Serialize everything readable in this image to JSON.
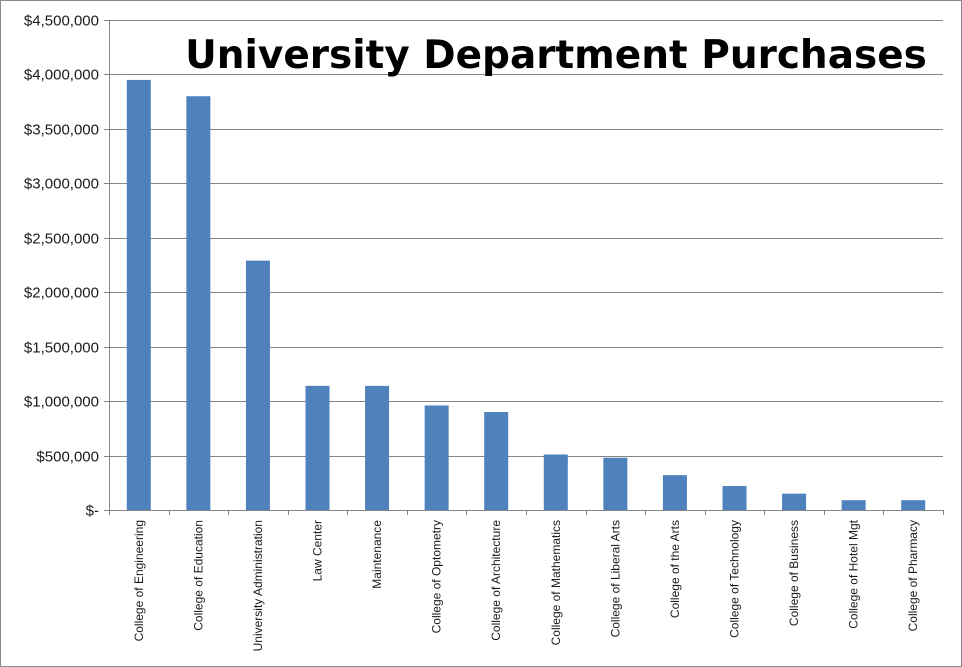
{
  "chart_data": {
    "type": "bar",
    "title": "University Department Purchases",
    "xlabel": "",
    "ylabel": "",
    "categories": [
      "College of Engineering",
      "College of Education",
      "University Administration",
      "Law Center",
      "Maintenance",
      "College of Optometry",
      "College of Architecture",
      "College of Mathematics",
      "College of Liberal Arts",
      "College of the Arts",
      "College of Technology",
      "College of Business",
      "College of Hotel Mgt",
      "College of Pharmacy"
    ],
    "values": [
      3950000,
      3800000,
      2290000,
      1140000,
      1140000,
      960000,
      900000,
      510000,
      480000,
      320000,
      220000,
      150000,
      90000,
      90000
    ],
    "ylim": [
      0,
      4500000
    ],
    "yticks": [
      0,
      500000,
      1000000,
      1500000,
      2000000,
      2500000,
      3000000,
      3500000,
      4000000,
      4500000
    ],
    "ytick_labels": [
      "$-",
      "$500,000",
      "$1,000,000",
      "$1,500,000",
      "$2,000,000",
      "$2,500,000",
      "$3,000,000",
      "$3,500,000",
      "$4,000,000",
      "$4,500,000"
    ],
    "grid": true,
    "bar_color": "#4f81bd",
    "grid_color": "#868686"
  }
}
